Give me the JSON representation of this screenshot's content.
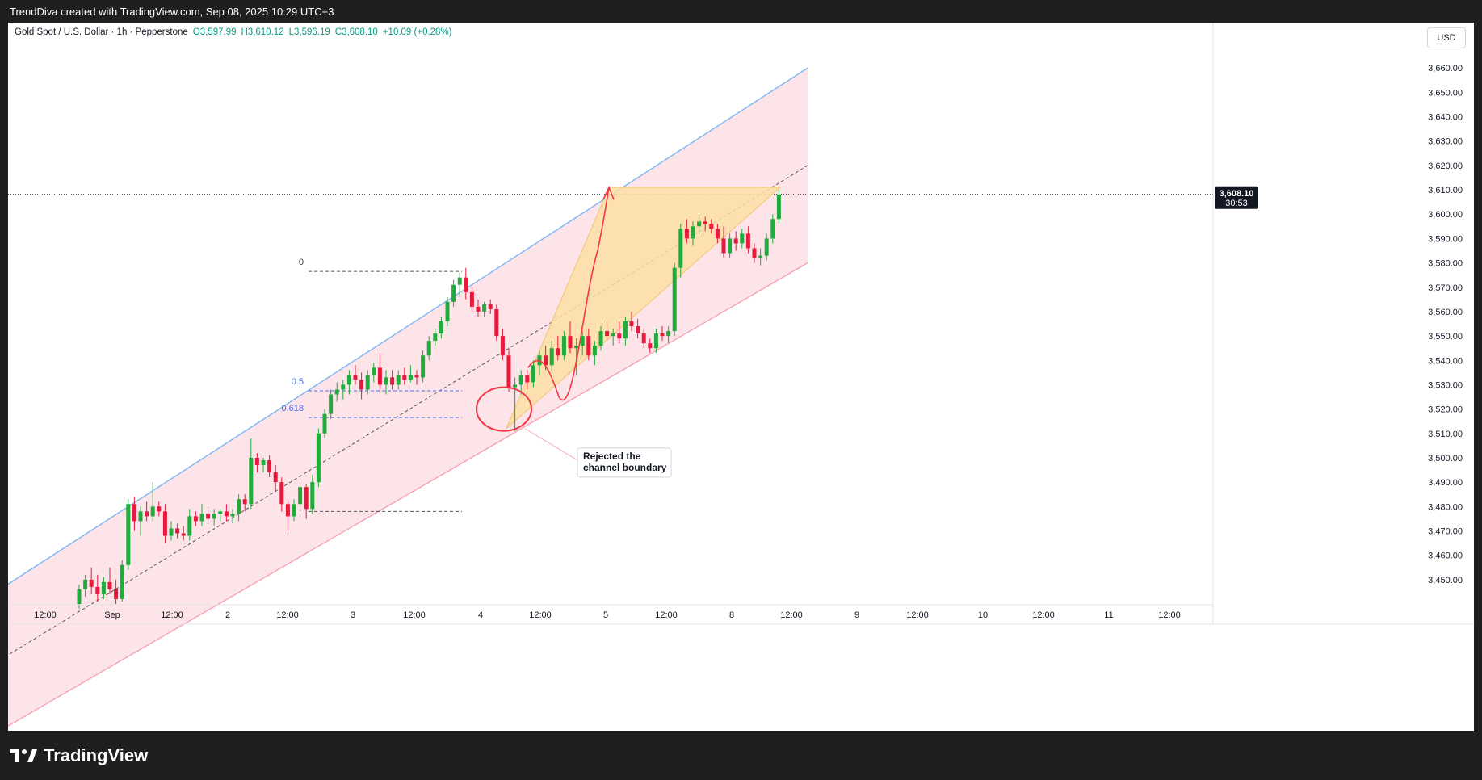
{
  "header": {
    "attribution": "TrendDiva created with TradingView.com, Sep 08, 2025 10:29 UTC+3"
  },
  "legend": {
    "symbol": "Gold Spot / U.S. Dollar · 1h · Pepperstone",
    "open": "O3,597.99",
    "high": "H3,610.12",
    "low": "L3,596.19",
    "close": "C3,608.10",
    "change": "+10.09 (+0.28%)"
  },
  "price_axis": {
    "currency": "USD",
    "last_price_label": "3,608.10",
    "countdown": "30:53"
  },
  "fib_labels": {
    "level_0": "0",
    "level_05": "0.5",
    "level_0618": "0.618"
  },
  "annotation": {
    "line1": "Rejected the",
    "line2": "channel boundary"
  },
  "footer": {
    "brand": "TradingView"
  },
  "colors": {
    "up": "#089981",
    "down": "#f23645",
    "up_candle": "#089981",
    "up_candle_fill": "#22ab3d",
    "down_candle_fill": "#e8193c",
    "channel_fill": "#fde4e8",
    "channel_upper": "#85b8f2",
    "channel_lower": "#f7a8b8",
    "fib_line": "#4c6ef5",
    "triangle_fill": "#fbdfa6",
    "projection": "#f23645"
  },
  "chart_data": {
    "type": "candlestick",
    "title": "Gold Spot / U.S. Dollar · 1h · Pepperstone",
    "ylim": [
      3440,
      3672
    ],
    "y_ticks": [
      3450,
      3460,
      3470,
      3480,
      3490,
      3500,
      3510,
      3520,
      3530,
      3540,
      3550,
      3560,
      3570,
      3580,
      3590,
      3600,
      3610,
      3620,
      3630,
      3640,
      3650,
      3660
    ],
    "x_tick_labels": [
      "12:00",
      "Sep",
      "12:00",
      "2",
      "12:00",
      "3",
      "12:00",
      "4",
      "12:00",
      "5",
      "12:00",
      "8",
      "12:00",
      "9",
      "12:00",
      "10",
      "12:00",
      "11",
      "12:00"
    ],
    "last_price": 3608.1,
    "candles": [
      [
        3440,
        3448,
        3438,
        3446
      ],
      [
        3446,
        3452,
        3443,
        3450
      ],
      [
        3450,
        3455,
        3444,
        3447
      ],
      [
        3447,
        3452,
        3441,
        3444
      ],
      [
        3444,
        3451,
        3442,
        3449
      ],
      [
        3449,
        3455,
        3444,
        3446
      ],
      [
        3446,
        3450,
        3440,
        3442
      ],
      [
        3442,
        3458,
        3441,
        3456
      ],
      [
        3456,
        3483,
        3454,
        3481
      ],
      [
        3481,
        3484,
        3470,
        3474
      ],
      [
        3474,
        3480,
        3468,
        3478
      ],
      [
        3478,
        3482,
        3474,
        3476
      ],
      [
        3476,
        3490,
        3474,
        3480
      ],
      [
        3480,
        3482,
        3476,
        3478
      ],
      [
        3478,
        3481,
        3465,
        3468
      ],
      [
        3468,
        3474,
        3466,
        3471
      ],
      [
        3471,
        3473,
        3467,
        3469
      ],
      [
        3469,
        3472,
        3466,
        3468
      ],
      [
        3468,
        3479,
        3466,
        3476
      ],
      [
        3476,
        3478,
        3472,
        3474
      ],
      [
        3474,
        3481,
        3472,
        3477
      ],
      [
        3477,
        3480,
        3473,
        3475
      ],
      [
        3475,
        3479,
        3472,
        3477
      ],
      [
        3477,
        3479,
        3474,
        3478
      ],
      [
        3478,
        3481,
        3474,
        3476
      ],
      [
        3476,
        3479,
        3473,
        3477
      ],
      [
        3477,
        3485,
        3474,
        3483
      ],
      [
        3483,
        3485,
        3478,
        3481
      ],
      [
        3481,
        3508,
        3479,
        3500
      ],
      [
        3500,
        3502,
        3494,
        3497
      ],
      [
        3497,
        3500,
        3494,
        3499
      ],
      [
        3499,
        3501,
        3492,
        3494
      ],
      [
        3494,
        3497,
        3486,
        3490
      ],
      [
        3490,
        3492,
        3478,
        3481
      ],
      [
        3481,
        3483,
        3470,
        3476
      ],
      [
        3476,
        3483,
        3474,
        3481
      ],
      [
        3481,
        3490,
        3478,
        3488
      ],
      [
        3488,
        3489,
        3475,
        3479
      ],
      [
        3479,
        3493,
        3477,
        3490
      ],
      [
        3490,
        3512,
        3488,
        3510
      ],
      [
        3510,
        3520,
        3508,
        3518
      ],
      [
        3518,
        3528,
        3516,
        3526
      ],
      [
        3526,
        3531,
        3523,
        3528
      ],
      [
        3528,
        3532,
        3524,
        3530
      ],
      [
        3530,
        3536,
        3526,
        3534
      ],
      [
        3534,
        3538,
        3530,
        3532
      ],
      [
        3532,
        3535,
        3524,
        3528
      ],
      [
        3528,
        3536,
        3526,
        3534
      ],
      [
        3534,
        3539,
        3531,
        3537
      ],
      [
        3537,
        3543,
        3528,
        3530
      ],
      [
        3530,
        3536,
        3526,
        3533
      ],
      [
        3533,
        3536,
        3528,
        3530
      ],
      [
        3530,
        3536,
        3528,
        3534
      ],
      [
        3534,
        3537,
        3530,
        3532
      ],
      [
        3532,
        3538,
        3531,
        3534
      ],
      [
        3534,
        3536,
        3530,
        3533
      ],
      [
        3533,
        3544,
        3531,
        3542
      ],
      [
        3542,
        3550,
        3540,
        3548
      ],
      [
        3548,
        3553,
        3546,
        3551
      ],
      [
        3551,
        3558,
        3549,
        3556
      ],
      [
        3556,
        3566,
        3554,
        3564
      ],
      [
        3564,
        3573,
        3562,
        3571
      ],
      [
        3571,
        3576,
        3566,
        3574
      ],
      [
        3574,
        3578,
        3565,
        3568
      ],
      [
        3568,
        3570,
        3560,
        3562
      ],
      [
        3562,
        3565,
        3558,
        3560
      ],
      [
        3560,
        3564,
        3558,
        3563
      ],
      [
        3563,
        3565,
        3559,
        3561
      ],
      [
        3561,
        3563,
        3548,
        3550
      ],
      [
        3550,
        3553,
        3540,
        3542
      ],
      [
        3542,
        3545,
        3527,
        3529
      ],
      [
        3529,
        3533,
        3511,
        3530
      ],
      [
        3530,
        3536,
        3526,
        3534
      ],
      [
        3534,
        3536,
        3528,
        3531
      ],
      [
        3531,
        3540,
        3529,
        3538
      ],
      [
        3538,
        3544,
        3534,
        3542
      ],
      [
        3542,
        3546,
        3536,
        3538
      ],
      [
        3538,
        3548,
        3536,
        3545
      ],
      [
        3545,
        3550,
        3540,
        3542
      ],
      [
        3542,
        3552,
        3540,
        3550
      ],
      [
        3550,
        3556,
        3543,
        3545
      ],
      [
        3545,
        3549,
        3534,
        3546
      ],
      [
        3546,
        3552,
        3542,
        3550
      ],
      [
        3550,
        3553,
        3540,
        3542
      ],
      [
        3542,
        3548,
        3538,
        3546
      ],
      [
        3546,
        3554,
        3544,
        3552
      ],
      [
        3552,
        3556,
        3548,
        3550
      ],
      [
        3550,
        3553,
        3546,
        3551
      ],
      [
        3551,
        3556,
        3547,
        3549
      ],
      [
        3549,
        3558,
        3546,
        3556
      ],
      [
        3556,
        3560,
        3552,
        3554
      ],
      [
        3554,
        3557,
        3549,
        3551
      ],
      [
        3551,
        3553,
        3545,
        3547
      ],
      [
        3547,
        3549,
        3543,
        3545
      ],
      [
        3545,
        3553,
        3543,
        3551
      ],
      [
        3551,
        3554,
        3548,
        3550
      ],
      [
        3550,
        3554,
        3547,
        3552
      ],
      [
        3552,
        3580,
        3550,
        3578
      ],
      [
        3578,
        3596,
        3574,
        3594
      ],
      [
        3594,
        3598,
        3588,
        3590
      ],
      [
        3590,
        3597,
        3587,
        3595
      ],
      [
        3595,
        3600,
        3592,
        3597
      ],
      [
        3597,
        3599,
        3593,
        3596
      ],
      [
        3596,
        3598,
        3592,
        3594
      ],
      [
        3594,
        3596,
        3588,
        3590
      ],
      [
        3590,
        3595,
        3582,
        3584
      ],
      [
        3584,
        3592,
        3582,
        3590
      ],
      [
        3590,
        3593,
        3585,
        3588
      ],
      [
        3588,
        3594,
        3586,
        3592
      ],
      [
        3592,
        3595,
        3584,
        3586
      ],
      [
        3586,
        3588,
        3580,
        3582
      ],
      [
        3582,
        3586,
        3579,
        3583
      ],
      [
        3583,
        3592,
        3581,
        3590
      ],
      [
        3590,
        3600,
        3588,
        3598
      ],
      [
        3598,
        3610.12,
        3596.19,
        3608.1
      ]
    ]
  }
}
